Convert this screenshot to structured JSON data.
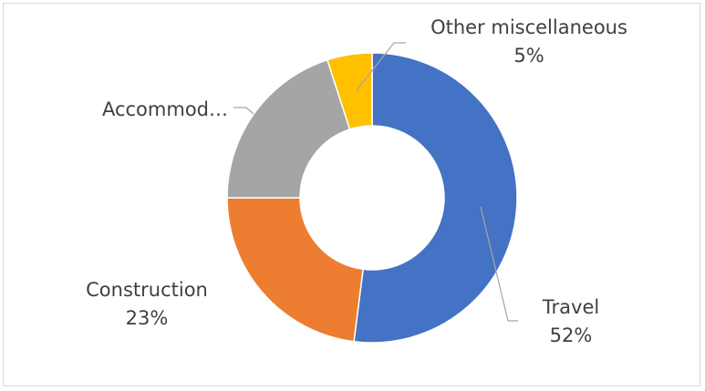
{
  "chart_data": {
    "type": "pie",
    "variant": "doughnut",
    "categories": [
      "Travel",
      "Construction",
      "Accommodation",
      "Other miscellaneous"
    ],
    "values": [
      52,
      23,
      20,
      5
    ],
    "colors": [
      "#4472C4",
      "#ED7D31",
      "#A5A5A5",
      "#FFC000"
    ],
    "labels": [
      {
        "name": "Travel",
        "pct": "52%"
      },
      {
        "name": "Construction",
        "pct": "23%"
      },
      {
        "name": "Accommod…",
        "pct": ""
      },
      {
        "name": "Other miscellaneous",
        "pct": "5%"
      }
    ]
  }
}
